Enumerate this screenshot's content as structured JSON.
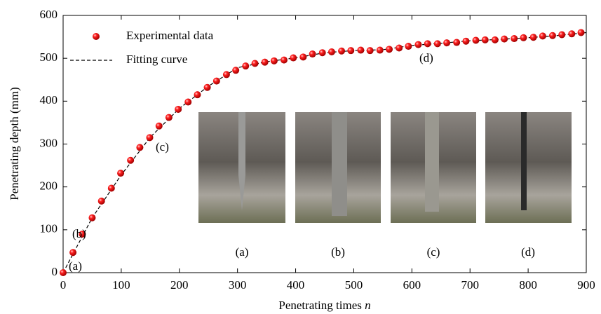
{
  "chart_data": {
    "type": "scatter",
    "xlabel": "Penetrating times",
    "xlabel_variable": "n",
    "ylabel": "Penetrating depth (mm)",
    "xlim": [
      0,
      900
    ],
    "xticks": [
      0,
      100,
      200,
      300,
      400,
      500,
      600,
      700,
      800,
      900
    ],
    "ylim": [
      0,
      600
    ],
    "yticks": [
      0,
      100,
      200,
      300,
      400,
      500,
      600
    ],
    "grid": false,
    "legend": "upper left",
    "series": [
      {
        "name": "Experimental data",
        "color": "#e00000",
        "style": "marker",
        "x": [
          0,
          17,
          33,
          50,
          66,
          83,
          99,
          116,
          132,
          149,
          165,
          182,
          198,
          215,
          231,
          248,
          264,
          281,
          297,
          314,
          330,
          347,
          363,
          380,
          396,
          413,
          429,
          446,
          462,
          479,
          495,
          512,
          528,
          545,
          561,
          578,
          594,
          611,
          627,
          644,
          660,
          677,
          693,
          710,
          726,
          743,
          759,
          776,
          792,
          809,
          825,
          842,
          858,
          875,
          891
        ],
        "values": [
          0,
          47,
          90,
          128,
          167,
          197,
          232,
          262,
          292,
          315,
          342,
          362,
          381,
          398,
          415,
          432,
          447,
          462,
          472,
          482,
          488,
          491,
          494,
          496,
          501,
          503,
          510,
          513,
          515,
          517,
          518,
          519,
          518,
          519,
          521,
          524,
          528,
          532,
          534,
          534,
          536,
          537,
          540,
          542,
          543,
          543,
          545,
          546,
          548,
          549,
          552,
          553,
          555,
          557,
          560
        ]
      },
      {
        "name": "Fitting curve",
        "color": "#000000",
        "style": "dashed",
        "x": [
          0,
          50,
          100,
          150,
          200,
          250,
          300,
          350,
          400,
          450,
          500,
          550,
          600,
          650,
          700,
          750,
          800,
          850,
          900
        ],
        "values": [
          0,
          128,
          228,
          316,
          383,
          435,
          478,
          492,
          501,
          513,
          518,
          520,
          530,
          535,
          541,
          544,
          548,
          553,
          560
        ]
      }
    ],
    "annotations": [
      "(a)",
      "(b)",
      "(c)",
      "(d)"
    ],
    "inset_labels": [
      "(a)",
      "(b)",
      "(c)",
      "(d)"
    ]
  }
}
